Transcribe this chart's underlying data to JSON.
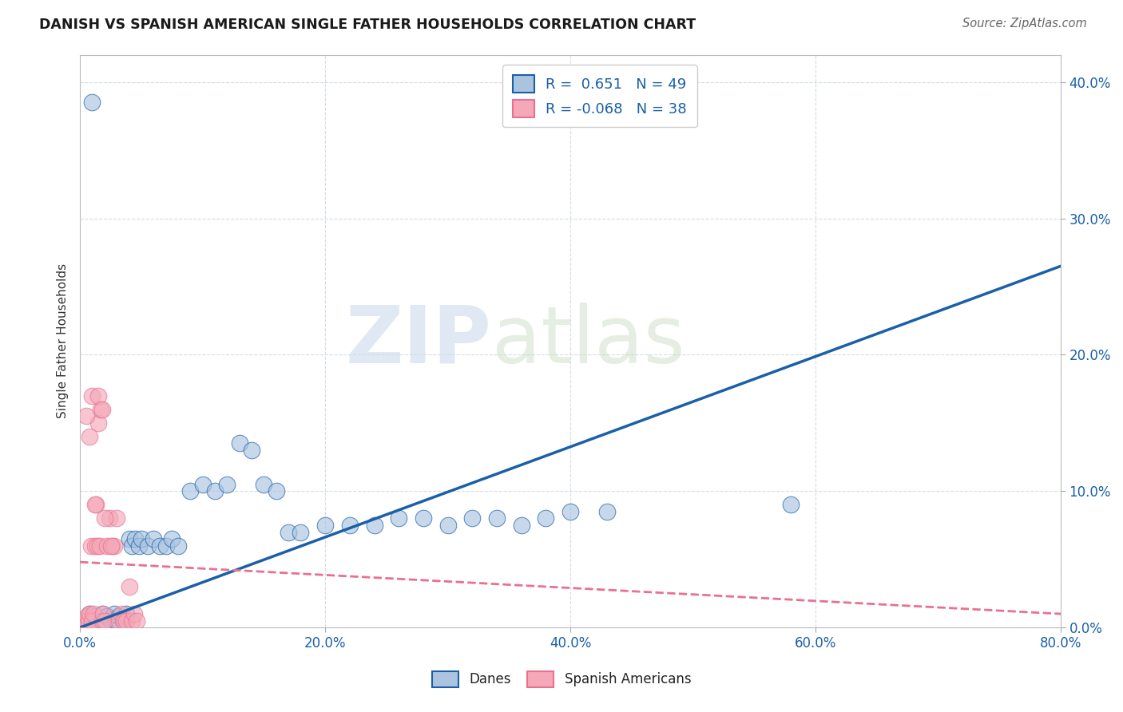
{
  "title": "DANISH VS SPANISH AMERICAN SINGLE FATHER HOUSEHOLDS CORRELATION CHART",
  "source": "Source: ZipAtlas.com",
  "ylabel": "Single Father Households",
  "xlim": [
    0.0,
    0.8
  ],
  "ylim": [
    0.0,
    0.42
  ],
  "xtick_pos": [
    0.0,
    0.2,
    0.4,
    0.6,
    0.8
  ],
  "xtick_labels": [
    "0.0%",
    "20.0%",
    "40.0%",
    "60.0%",
    "80.0%"
  ],
  "ytick_pos": [
    0.0,
    0.1,
    0.2,
    0.3,
    0.4
  ],
  "ytick_labels": [
    "0.0%",
    "10.0%",
    "20.0%",
    "30.0%",
    "40.0%"
  ],
  "danes_R": 0.651,
  "danes_N": 49,
  "spanish_R": -0.068,
  "spanish_N": 38,
  "danes_color": "#aac4e0",
  "spanish_color": "#f4a8b8",
  "danes_line_color": "#1a5fa8",
  "spanish_line_color": "#e87090",
  "watermark_zip": "ZIP",
  "watermark_atlas": "atlas",
  "danes_x": [
    0.005,
    0.008,
    0.01,
    0.012,
    0.015,
    0.018,
    0.02,
    0.022,
    0.025,
    0.028,
    0.03,
    0.032,
    0.035,
    0.038,
    0.04,
    0.042,
    0.045,
    0.048,
    0.05,
    0.055,
    0.06,
    0.065,
    0.07,
    0.075,
    0.08,
    0.09,
    0.1,
    0.11,
    0.12,
    0.13,
    0.14,
    0.15,
    0.16,
    0.17,
    0.18,
    0.2,
    0.22,
    0.24,
    0.26,
    0.28,
    0.3,
    0.32,
    0.34,
    0.36,
    0.38,
    0.4,
    0.43,
    0.58,
    0.01
  ],
  "danes_y": [
    0.005,
    0.01,
    0.005,
    0.008,
    0.005,
    0.01,
    0.005,
    0.008,
    0.005,
    0.01,
    0.005,
    0.008,
    0.005,
    0.01,
    0.065,
    0.06,
    0.065,
    0.06,
    0.065,
    0.06,
    0.065,
    0.06,
    0.06,
    0.065,
    0.06,
    0.1,
    0.105,
    0.1,
    0.105,
    0.135,
    0.13,
    0.105,
    0.1,
    0.07,
    0.07,
    0.075,
    0.075,
    0.075,
    0.08,
    0.08,
    0.075,
    0.08,
    0.08,
    0.075,
    0.08,
    0.085,
    0.085,
    0.09,
    0.385
  ],
  "spanish_x": [
    0.003,
    0.005,
    0.006,
    0.007,
    0.008,
    0.009,
    0.01,
    0.011,
    0.012,
    0.013,
    0.014,
    0.015,
    0.016,
    0.017,
    0.018,
    0.019,
    0.02,
    0.022,
    0.024,
    0.026,
    0.028,
    0.03,
    0.032,
    0.034,
    0.036,
    0.038,
    0.04,
    0.042,
    0.044,
    0.046,
    0.005,
    0.008,
    0.01,
    0.012,
    0.015,
    0.018,
    0.02,
    0.025
  ],
  "spanish_y": [
    0.005,
    0.005,
    0.008,
    0.005,
    0.01,
    0.06,
    0.005,
    0.01,
    0.06,
    0.09,
    0.06,
    0.15,
    0.06,
    0.16,
    0.005,
    0.01,
    0.005,
    0.06,
    0.08,
    0.06,
    0.06,
    0.08,
    0.005,
    0.01,
    0.005,
    0.005,
    0.03,
    0.005,
    0.01,
    0.005,
    0.155,
    0.14,
    0.17,
    0.09,
    0.17,
    0.16,
    0.08,
    0.06
  ],
  "danes_line_x": [
    0.0,
    0.8
  ],
  "danes_line_y": [
    0.0,
    0.265
  ],
  "spanish_line_x": [
    0.0,
    0.8
  ],
  "spanish_line_y": [
    0.048,
    0.01
  ]
}
